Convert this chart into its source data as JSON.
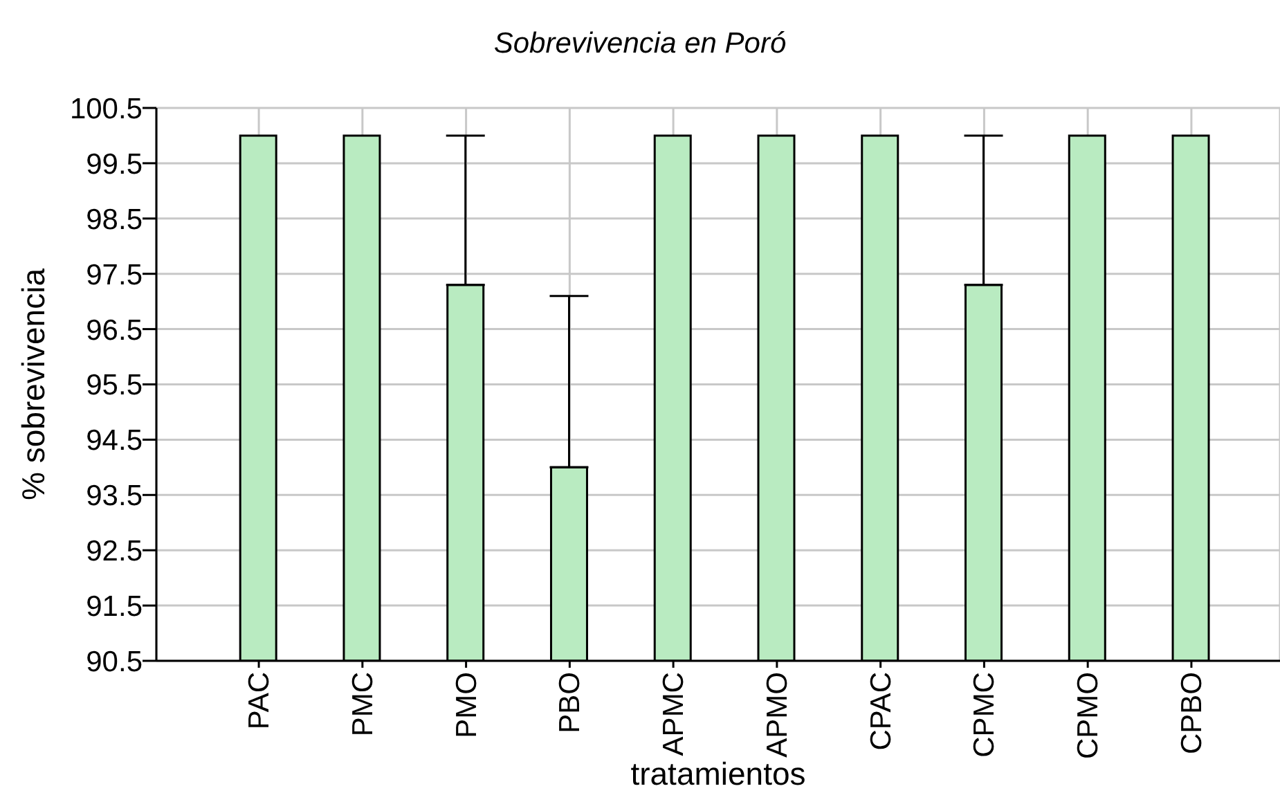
{
  "chart_data": {
    "type": "bar",
    "title": "Sobrevivencia en Poró",
    "xlabel": "tratamientos",
    "ylabel": "% sobrevivencia",
    "categories": [
      "PAC",
      "PMC",
      "PMO",
      "PBO",
      "APMC",
      "APMO",
      "CPAC",
      "CPMC",
      "CPMO",
      "CPBO"
    ],
    "values": [
      100,
      100,
      97.3,
      94.0,
      100,
      100,
      100,
      97.3,
      100,
      100
    ],
    "errors": [
      null,
      null,
      [
        97.3,
        100
      ],
      [
        94.0,
        97.1
      ],
      null,
      null,
      null,
      [
        97.3,
        100
      ],
      null,
      null
    ],
    "color": "#b9ebc1",
    "ylim": [
      90.5,
      100.5
    ],
    "yticks": [
      90.5,
      91.5,
      92.5,
      93.5,
      94.5,
      95.5,
      96.5,
      97.5,
      98.5,
      99.5,
      100.5
    ],
    "grid": true
  }
}
